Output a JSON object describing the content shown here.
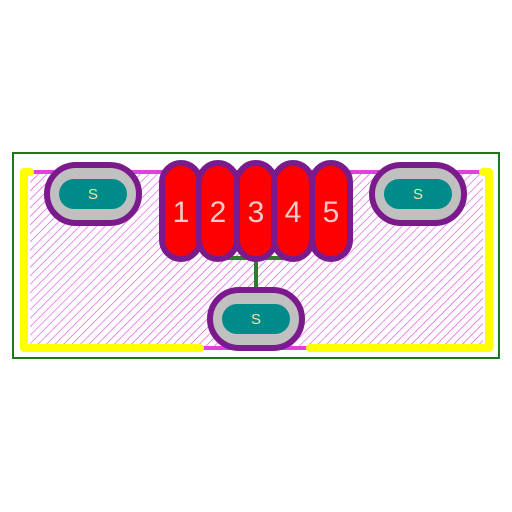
{
  "footprint": {
    "colors": {
      "background": "#ffffff",
      "board_outline": "#1a7a1a",
      "hatch": "#e040e0",
      "silkscreen": "#ffff00",
      "pad_ring": "#7b1a8c",
      "signal_pad": "#ff0000",
      "shield_pad_ring": "#c0c0c0",
      "shield_pad_core": "#008b8b",
      "trace": "#2e7d2e"
    },
    "signal_pads": [
      {
        "label": "1"
      },
      {
        "label": "2"
      },
      {
        "label": "3"
      },
      {
        "label": "4"
      },
      {
        "label": "5"
      }
    ],
    "shield_pads": [
      {
        "label": "S"
      },
      {
        "label": "S"
      },
      {
        "label": "S"
      }
    ]
  }
}
